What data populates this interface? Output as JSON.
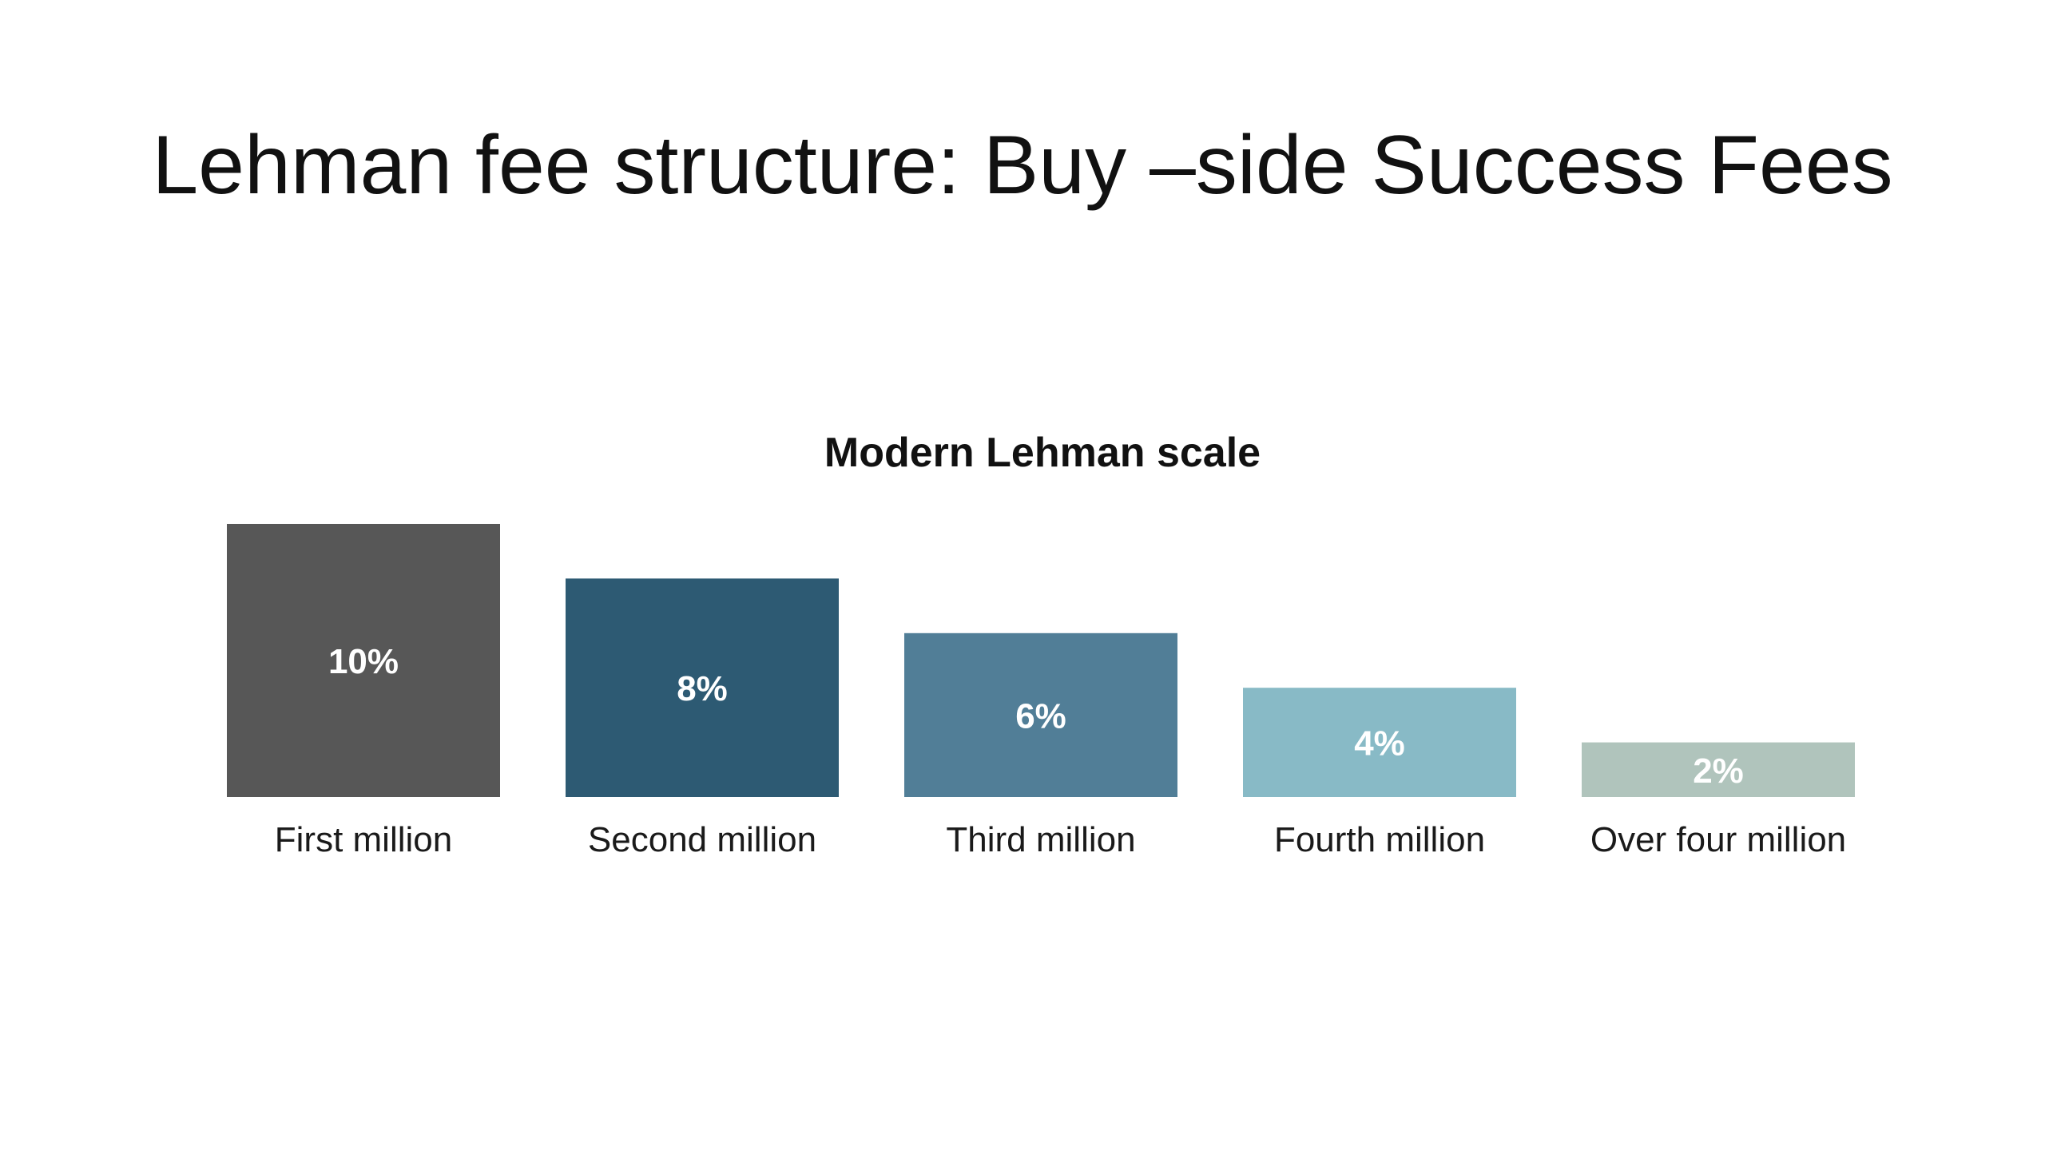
{
  "slide": {
    "title": "Lehman fee structure: Buy –side Success Fees"
  },
  "chart_data": {
    "type": "bar",
    "title": "Modern Lehman scale",
    "xlabel": "",
    "ylabel": "",
    "categories": [
      "First million",
      "Second million",
      "Third million",
      "Fourth million",
      "Over four million"
    ],
    "values": [
      10,
      8,
      6,
      4,
      2
    ],
    "data_labels": [
      "10%",
      "8%",
      "6%",
      "4%",
      "2%"
    ],
    "unit": "%",
    "ylim": [
      0,
      10
    ],
    "grid": false,
    "legend": "none",
    "colors": [
      "#575757",
      "#2d5a73",
      "#517e97",
      "#88bac6",
      "#b0c4bc"
    ]
  }
}
